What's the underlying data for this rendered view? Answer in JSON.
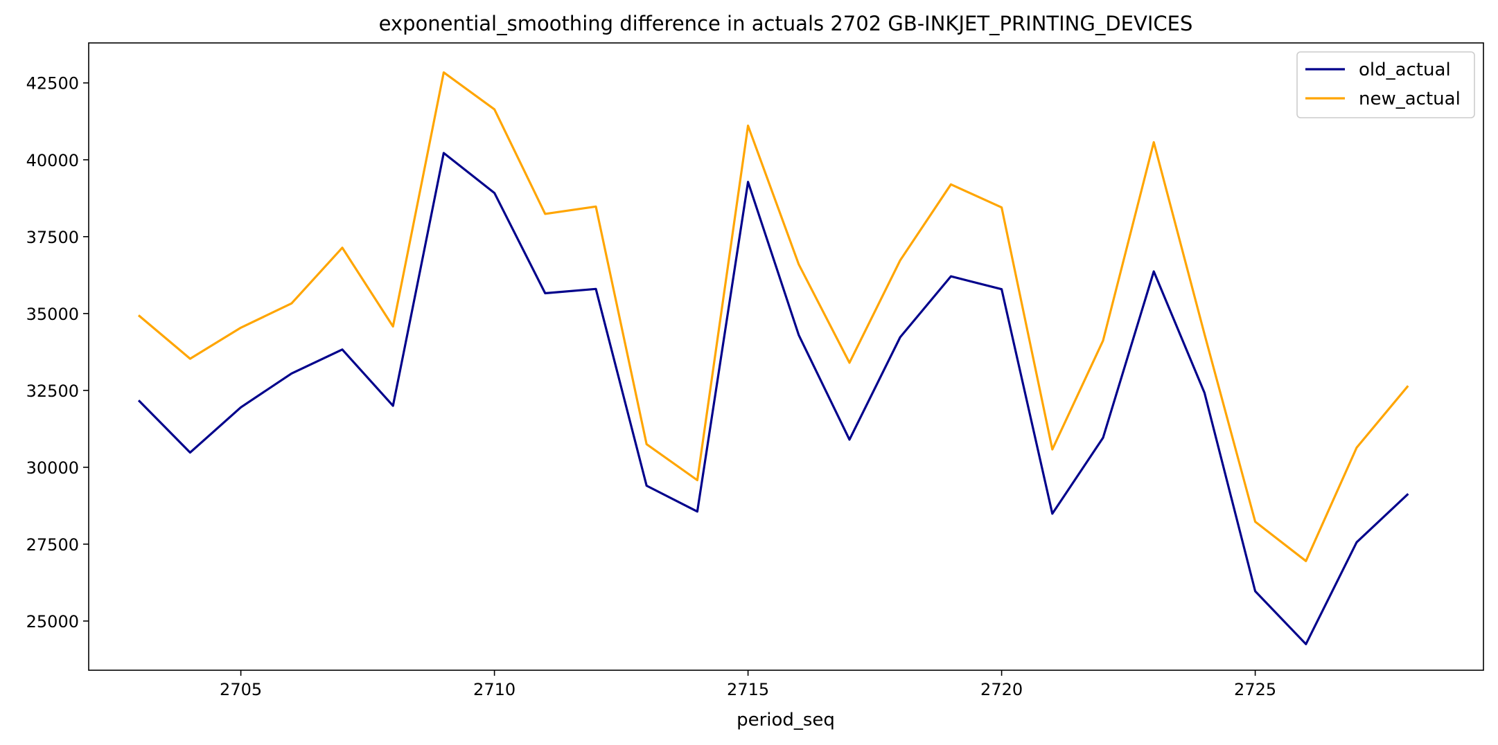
{
  "chart_data": {
    "type": "line",
    "title": "exponential_smoothing difference in actuals 2702 GB-INKJET_PRINTING_DEVICES",
    "xlabel": "period_seq",
    "ylabel": "",
    "xlim": [
      2702,
      2729.5
    ],
    "ylim": [
      23400,
      43800
    ],
    "xticks": [
      2705,
      2710,
      2715,
      2720,
      2725
    ],
    "yticks": [
      25000,
      27500,
      30000,
      32500,
      35000,
      37500,
      40000,
      42500
    ],
    "grid": false,
    "legend_position": "top-right",
    "x": [
      2703,
      2704,
      2705,
      2706,
      2707,
      2708,
      2709,
      2710,
      2711,
      2712,
      2713,
      2714,
      2715,
      2716,
      2717,
      2718,
      2719,
      2720,
      2721,
      2722,
      2723,
      2724,
      2725,
      2726,
      2727,
      2728
    ],
    "series": [
      {
        "name": "old_actual",
        "color": "#00008b",
        "values": [
          32150,
          30480,
          31950,
          33050,
          33830,
          32000,
          40220,
          38920,
          35660,
          35800,
          29400,
          28560,
          39280,
          34300,
          30900,
          34230,
          36210,
          35790,
          28490,
          30960,
          36370,
          32420,
          25970,
          24250,
          27560,
          29110
        ]
      },
      {
        "name": "new_actual",
        "color": "#ffa500",
        "values": [
          34920,
          33530,
          34540,
          35330,
          37140,
          34580,
          42840,
          41640,
          38240,
          38480,
          30750,
          29580,
          41110,
          36600,
          33400,
          36730,
          39200,
          38450,
          30580,
          34120,
          40570,
          34330,
          28230,
          26950,
          30640,
          32620
        ]
      }
    ]
  }
}
